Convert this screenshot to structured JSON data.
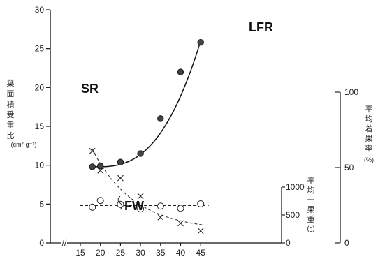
{
  "chart_data": {
    "type": "line",
    "x": [
      18,
      20,
      25,
      30,
      35,
      40,
      45
    ],
    "xlim": [
      10,
      48
    ],
    "x_ticks": [
      "15",
      "20",
      "25",
      "30",
      "35",
      "40",
      "45"
    ],
    "x_break_mark": "//",
    "left_axis": {
      "label_chars": [
        "葉",
        "面",
        "積",
        "受",
        "重",
        "比"
      ],
      "unit": "(cm²·g⁻¹)",
      "ylim": [
        0,
        30
      ],
      "ticks": [
        "0",
        "5",
        "10",
        "15",
        "20",
        "25",
        "30"
      ]
    },
    "mid_axis": {
      "label_chars": [
        "平",
        "均",
        "一",
        "果",
        "重"
      ],
      "unit": "(g)",
      "ylim": [
        0,
        2000
      ],
      "ticks": [
        "0",
        "500",
        "1000"
      ]
    },
    "right_axis": {
      "label_chars": [
        "平",
        "均",
        "着",
        "果",
        "率"
      ],
      "unit": "(%)",
      "ylim": [
        0,
        100
      ],
      "ticks": [
        "0",
        "50",
        "100"
      ]
    },
    "series": [
      {
        "name": "LFR",
        "axis": "left",
        "marker": "filled-circle",
        "line": "solid",
        "values": [
          9.8,
          9.9,
          10.4,
          11.5,
          16.0,
          22.0,
          25.8
        ]
      },
      {
        "name": "SR",
        "axis": "right",
        "marker": "x",
        "line": "dashed",
        "values": [
          61,
          48,
          43,
          31,
          17,
          13,
          8
        ]
      },
      {
        "name": "FW",
        "axis": "mid",
        "marker": "open-circle",
        "line": "dashed",
        "values": [
          640,
          760,
          690,
          610,
          660,
          620,
          700
        ]
      }
    ],
    "grid": false,
    "legend": "none"
  }
}
